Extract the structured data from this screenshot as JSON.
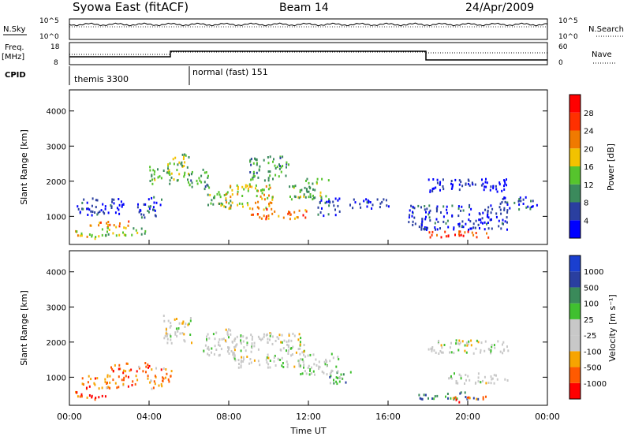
{
  "header": {
    "station": "Syowa East (fitACF)",
    "beam": "Beam 14",
    "date": "24/Apr/2009"
  },
  "sky_panel": {
    "left_label": "N.Sky",
    "right_label": "N.Search",
    "left_ticks": [
      "10^5",
      "10^0"
    ],
    "right_ticks": [
      "10^5",
      "10^0"
    ]
  },
  "freq_panel": {
    "left_label_1": "Freq.",
    "left_label_2": "[MHz]",
    "right_label": "Nave",
    "left_ticks": [
      "18",
      "8"
    ],
    "right_ticks": [
      "60",
      "0"
    ]
  },
  "cpid_panel": {
    "label": "CPID",
    "modes": [
      {
        "name": "themis 3300",
        "start_hour": 0
      },
      {
        "name": "normal (fast) 151",
        "start_hour": 6
      }
    ]
  },
  "colors": {
    "power": [
      "#0000ff",
      "#2a3fa0",
      "#3b8a5c",
      "#56c42d",
      "#f2c200",
      "#f07a00",
      "#ff3000",
      "#ff0000"
    ],
    "velocity": [
      "#ff0000",
      "#ff5a00",
      "#f7a400",
      "#c8c8c8",
      "#c8c8c8",
      "#40c030",
      "#3a8a5a",
      "#2a3fa0",
      "#1a3fd0"
    ]
  },
  "chart_data": [
    {
      "type": "heatmap",
      "panel": "power",
      "ylabel": "Slant Range [km]",
      "ylim": [
        200,
        4600
      ],
      "y_ticks": [
        "1000",
        "2000",
        "3000",
        "4000"
      ],
      "xlim_hours": [
        0,
        24
      ],
      "colorbar_label": "Power [dB]",
      "colorbar_ticks": [
        "28",
        "24",
        "20",
        "16",
        "12",
        "8",
        "4"
      ],
      "blobs": [
        {
          "t": 1.0,
          "r": 500,
          "dt": 0.8,
          "dr": 120,
          "v": 0.55
        },
        {
          "t": 2.0,
          "r": 800,
          "dt": 1.0,
          "dr": 100,
          "v": 0.65
        },
        {
          "t": 2.8,
          "r": 600,
          "dt": 1.2,
          "dr": 120,
          "v": 0.45
        },
        {
          "t": 1.5,
          "r": 1300,
          "dt": 1.2,
          "dr": 250,
          "v": 0.15
        },
        {
          "t": 4.0,
          "r": 1300,
          "dt": 0.6,
          "dr": 300,
          "v": 0.2
        },
        {
          "t": 4.5,
          "r": 2200,
          "dt": 0.5,
          "dr": 250,
          "v": 0.4
        },
        {
          "t": 5.4,
          "r": 2400,
          "dt": 0.6,
          "dr": 400,
          "v": 0.45
        },
        {
          "t": 6.5,
          "r": 2100,
          "dt": 0.5,
          "dr": 300,
          "v": 0.35
        },
        {
          "t": 7.5,
          "r": 1500,
          "dt": 0.6,
          "dr": 250,
          "v": 0.4
        },
        {
          "t": 9.0,
          "r": 1600,
          "dt": 1.2,
          "dr": 350,
          "v": 0.55
        },
        {
          "t": 10.0,
          "r": 2400,
          "dt": 1.0,
          "dr": 350,
          "v": 0.35
        },
        {
          "t": 10.5,
          "r": 1100,
          "dt": 1.4,
          "dr": 150,
          "v": 0.75
        },
        {
          "t": 12.0,
          "r": 1800,
          "dt": 1.0,
          "dr": 300,
          "v": 0.4
        },
        {
          "t": 13.0,
          "r": 1300,
          "dt": 0.6,
          "dr": 250,
          "v": 0.15
        },
        {
          "t": 15.0,
          "r": 1400,
          "dt": 1.0,
          "dr": 150,
          "v": 0.12
        },
        {
          "t": 19.5,
          "r": 1000,
          "dt": 2.5,
          "dr": 350,
          "v": 0.15
        },
        {
          "t": 19.5,
          "r": 500,
          "dt": 1.5,
          "dr": 100,
          "v": 0.8
        },
        {
          "t": 20.0,
          "r": 1900,
          "dt": 2.0,
          "dr": 200,
          "v": 0.1
        },
        {
          "t": 22.5,
          "r": 1400,
          "dt": 1.0,
          "dr": 200,
          "v": 0.15
        }
      ]
    },
    {
      "type": "heatmap",
      "panel": "velocity",
      "ylabel": "Slant Range [km]",
      "ylim": [
        200,
        4600
      ],
      "y_ticks": [
        "1000",
        "2000",
        "3000",
        "4000"
      ],
      "xlabel": "Time UT",
      "x_ticks": [
        "00:00",
        "04:00",
        "08:00",
        "12:00",
        "16:00",
        "20:00",
        "00:00"
      ],
      "xlim_hours": [
        0,
        24
      ],
      "colorbar_label": "Velocity [m s⁻¹]",
      "colorbar_ticks": [
        "1000",
        "500",
        "100",
        "25",
        "-25",
        "-100",
        "-500",
        "-1000"
      ],
      "blobs": [
        {
          "t": 1.0,
          "r": 500,
          "dt": 0.8,
          "dr": 120,
          "v": 0.15
        },
        {
          "t": 2.0,
          "r": 900,
          "dt": 1.4,
          "dr": 200,
          "v": 0.2
        },
        {
          "t": 3.0,
          "r": 1300,
          "dt": 1.0,
          "dr": 150,
          "v": 0.2
        },
        {
          "t": 4.5,
          "r": 1000,
          "dt": 0.6,
          "dr": 300,
          "v": 0.25
        },
        {
          "t": 5.4,
          "r": 2400,
          "dt": 0.7,
          "dr": 400,
          "v": 0.45
        },
        {
          "t": 7.5,
          "r": 2000,
          "dt": 0.8,
          "dr": 400,
          "v": 0.45
        },
        {
          "t": 10.0,
          "r": 1800,
          "dt": 1.8,
          "dr": 500,
          "v": 0.45
        },
        {
          "t": 12.5,
          "r": 1400,
          "dt": 1.0,
          "dr": 300,
          "v": 0.5
        },
        {
          "t": 13.5,
          "r": 1000,
          "dt": 0.6,
          "dr": 200,
          "v": 0.65
        },
        {
          "t": 19.0,
          "r": 500,
          "dt": 1.5,
          "dr": 100,
          "v": 0.75
        },
        {
          "t": 20.0,
          "r": 400,
          "dt": 1.0,
          "dr": 80,
          "v": 0.2
        },
        {
          "t": 20.0,
          "r": 1900,
          "dt": 2.0,
          "dr": 200,
          "v": 0.45
        },
        {
          "t": 20.5,
          "r": 1000,
          "dt": 1.5,
          "dr": 150,
          "v": 0.45
        }
      ]
    }
  ]
}
